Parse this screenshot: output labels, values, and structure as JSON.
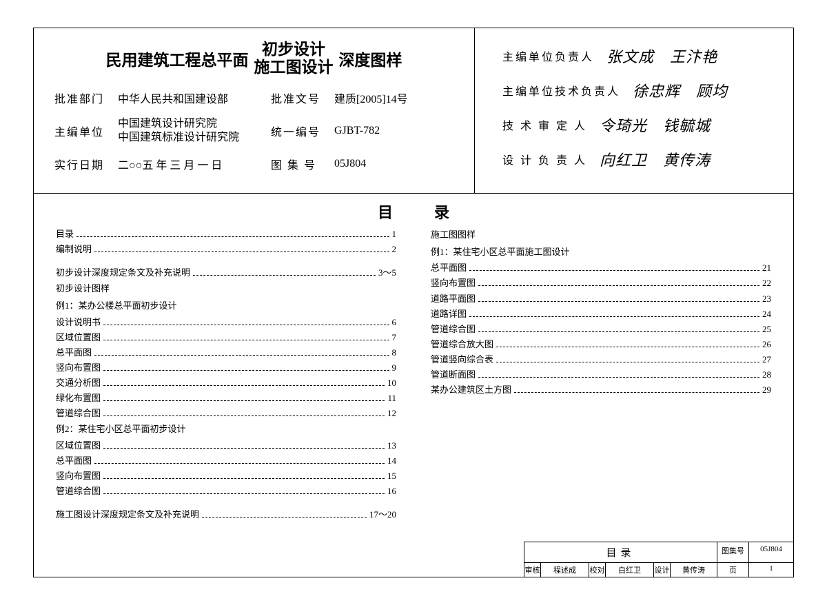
{
  "title": {
    "left": "民用建筑工程总平面",
    "stack_top": "初步设计",
    "stack_bottom": "施工图设计",
    "right": "深度图样"
  },
  "meta": {
    "approve_dept_label": "批准部门",
    "approve_dept": "中华人民共和国建设部",
    "approve_no_label": "批准文号",
    "approve_no": "建质[2005]14号",
    "editor_label": "主编单位",
    "editor_1": "中国建筑设计研究院",
    "editor_2": "中国建筑标准设计研究院",
    "unino_label": "统一编号",
    "unino": "GJBT-782",
    "date_label": "实行日期",
    "date": "二○○五 年 三 月 一 日",
    "atlas_label": "图 集 号",
    "atlas": "05J804"
  },
  "signers": {
    "r1_label": "主编单位负责人",
    "r1_val": "张文成　王汴艳",
    "r2_label": "主编单位技术负责人",
    "r2_val": "徐忠辉　顾均",
    "r3_label": "技 术 审 定 人",
    "r3_val": "令琦光　钱毓城",
    "r4_label": "设 计 负 责 人",
    "r4_val": "向红卫　黄传涛"
  },
  "toc_title": "目录",
  "toc_left": [
    {
      "t": "目录",
      "p": "1"
    },
    {
      "t": "编制说明",
      "p": "2"
    },
    {
      "t": "",
      "p": ""
    },
    {
      "t": "初步设计深度规定条文及补充说明",
      "p": "3～5"
    },
    {
      "t": "初步设计图样",
      "p": ""
    },
    {
      "t": "例1：某办公楼总平面初步设计",
      "p": ""
    },
    {
      "t": "设计说明书",
      "p": "6"
    },
    {
      "t": "区域位置图",
      "p": "7"
    },
    {
      "t": "总平面图",
      "p": "8"
    },
    {
      "t": "竖向布置图",
      "p": "9"
    },
    {
      "t": "交通分析图",
      "p": "10"
    },
    {
      "t": "绿化布置图",
      "p": "11"
    },
    {
      "t": "管道综合图",
      "p": "12"
    },
    {
      "t": "例2：某住宅小区总平面初步设计",
      "p": ""
    },
    {
      "t": "区域位置图",
      "p": "13"
    },
    {
      "t": "总平面图",
      "p": "14"
    },
    {
      "t": "竖向布置图",
      "p": "15"
    },
    {
      "t": "管道综合图",
      "p": "16"
    },
    {
      "t": "",
      "p": ""
    },
    {
      "t": "施工图设计深度规定条文及补充说明",
      "p": "17～20"
    }
  ],
  "toc_right": [
    {
      "t": "施工图图样",
      "p": ""
    },
    {
      "t": "例1：某住宅小区总平面施工图设计",
      "p": ""
    },
    {
      "t": "总平面图",
      "p": "21"
    },
    {
      "t": "竖向布置图",
      "p": "22"
    },
    {
      "t": "道路平面图",
      "p": "23"
    },
    {
      "t": "道路详图",
      "p": "24"
    },
    {
      "t": "管道综合图",
      "p": "25"
    },
    {
      "t": "管道综合放大图",
      "p": "26"
    },
    {
      "t": "管道竖向综合表",
      "p": "27"
    },
    {
      "t": "管道断面图",
      "p": "28"
    },
    {
      "t": "某办公建筑区土方图",
      "p": "29"
    }
  ],
  "titleblock": {
    "name": "目录",
    "atlas_label": "图集号",
    "atlas": "05J804",
    "row": {
      "a": "审核",
      "b": "程述成",
      "c": "校对",
      "d": "白红卫",
      "e": "设计",
      "f": "黄传涛",
      "g": "页",
      "h": "1"
    }
  }
}
